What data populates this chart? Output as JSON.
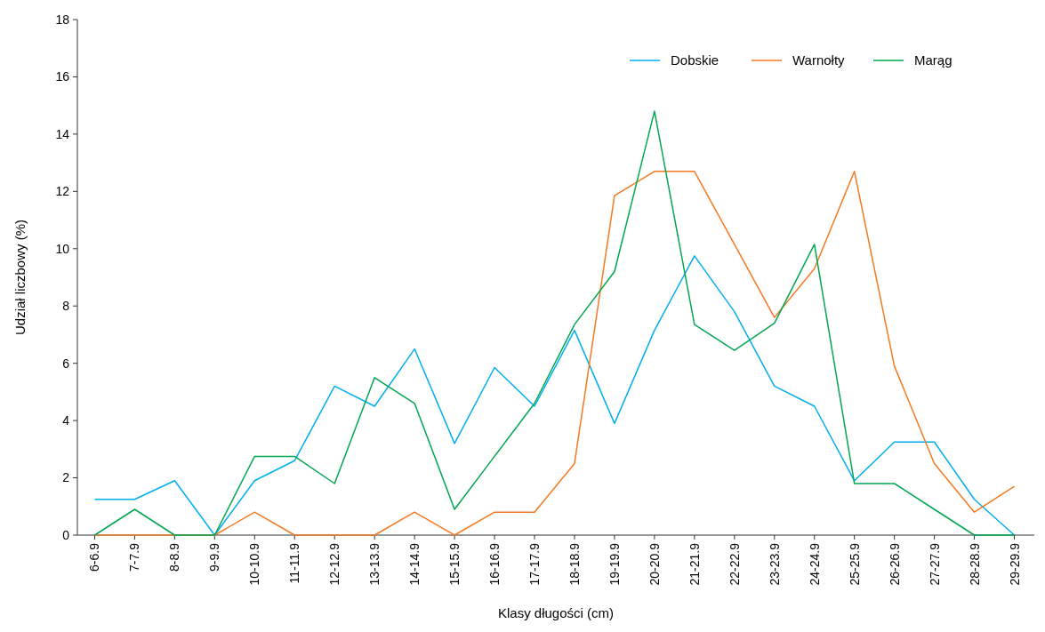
{
  "chart_data": {
    "type": "line",
    "xlabel": "Klasy długości (cm)",
    "ylabel": "Udział liczbowy (%)",
    "categories": [
      "6-6.9",
      "7-7.9",
      "8-8.9",
      "9-9.9",
      "10-10.9",
      "11-11.9",
      "12-12.9",
      "13-13.9",
      "14-14.9",
      "15-15.9",
      "16-16.9",
      "17-17.9",
      "18-18.9",
      "19-19.9",
      "20-20.9",
      "21-21.9",
      "22-22.9",
      "23-23.9",
      "24-24.9",
      "25-25.9",
      "26-26.9",
      "27-27.9",
      "28-28.9",
      "29-29.9"
    ],
    "series": [
      {
        "name": "Dobskie",
        "color": "#00aeef",
        "values": [
          1.25,
          1.25,
          1.9,
          0,
          1.9,
          2.6,
          5.2,
          4.5,
          6.5,
          3.2,
          5.85,
          4.5,
          7.15,
          3.9,
          7.15,
          9.75,
          7.8,
          5.2,
          4.5,
          1.9,
          3.25,
          3.25,
          1.25,
          0
        ]
      },
      {
        "name": "Warnołty",
        "color": "#f47920",
        "values": [
          0,
          0,
          0,
          0,
          0.8,
          0,
          0,
          0,
          0.8,
          0,
          0.8,
          0.8,
          2.5,
          11.85,
          12.7,
          12.7,
          10.15,
          7.6,
          9.3,
          12.7,
          5.9,
          2.5,
          0.8,
          1.7
        ]
      },
      {
        "name": "Marąg",
        "color": "#00a651",
        "values": [
          0,
          0.9,
          0,
          0,
          2.75,
          2.75,
          1.8,
          5.5,
          4.6,
          0.9,
          2.75,
          4.6,
          7.35,
          9.2,
          14.8,
          7.35,
          6.45,
          7.4,
          10.15,
          1.8,
          1.8,
          0.9,
          0,
          0
        ]
      }
    ],
    "ylim": [
      0,
      18
    ],
    "yticks": [
      0,
      2,
      4,
      6,
      8,
      10,
      12,
      14,
      16,
      18
    ],
    "grid": false,
    "legend": "top right",
    "marker": "none",
    "line_style": "solid"
  }
}
